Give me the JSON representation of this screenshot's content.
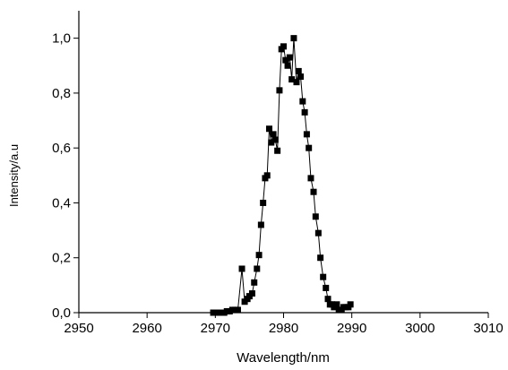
{
  "chart_data": {
    "type": "line",
    "x_label": "Wavelength/nm",
    "y_label": "Intensity/a.u",
    "x": [
      2969.7,
      2970.1,
      2970.5,
      2970.9,
      2971.3,
      2971.7,
      2972.1,
      2972.5,
      2972.9,
      2973.3,
      2973.9,
      2974.3,
      2974.7,
      2975.0,
      2975.4,
      2975.7,
      2976.1,
      2976.4,
      2976.7,
      2977.0,
      2977.3,
      2977.6,
      2977.9,
      2978.2,
      2978.5,
      2978.8,
      2979.1,
      2979.4,
      2979.7,
      2980.0,
      2980.3,
      2980.6,
      2980.9,
      2981.2,
      2981.5,
      2981.9,
      2982.2,
      2982.5,
      2982.8,
      2983.1,
      2983.4,
      2983.7,
      2984.0,
      2984.4,
      2984.7,
      2985.1,
      2985.4,
      2985.8,
      2986.2,
      2986.5,
      2986.8,
      2987.1,
      2987.4,
      2987.8,
      2988.1,
      2988.5,
      2988.8,
      2989.1,
      2989.5,
      2989.8
    ],
    "series": [
      {
        "color": "#000000",
        "values": [
          0,
          0,
          0,
          0,
          0,
          0.005,
          0.005,
          0.01,
          0.01,
          0.01,
          0.16,
          0.04,
          0.05,
          0.06,
          0.07,
          0.11,
          0.16,
          0.21,
          0.32,
          0.4,
          0.49,
          0.5,
          0.67,
          0.62,
          0.65,
          0.63,
          0.59,
          0.81,
          0.96,
          0.97,
          0.92,
          0.9,
          0.93,
          0.85,
          1.0,
          0.84,
          0.88,
          0.86,
          0.77,
          0.73,
          0.65,
          0.6,
          0.49,
          0.44,
          0.35,
          0.29,
          0.2,
          0.13,
          0.09,
          0.05,
          0.03,
          0.03,
          0.02,
          0.03,
          0.01,
          0.01,
          0.02,
          0.02,
          0.02,
          0.03
        ]
      }
    ],
    "xlim": [
      2950,
      3010
    ],
    "xticks": [
      2950,
      2960,
      2970,
      2980,
      2990,
      3000,
      3010
    ],
    "ylim": [
      0,
      1.1
    ],
    "yticks": [
      {
        "value": 0,
        "label": "0,0"
      },
      {
        "value": 0.2,
        "label": "0,2"
      },
      {
        "value": 0.4,
        "label": "0,4"
      },
      {
        "value": 0.6,
        "label": "0,6"
      },
      {
        "value": 0.8,
        "label": "0,8"
      },
      {
        "value": 1.0,
        "label": "1,0"
      }
    ]
  }
}
